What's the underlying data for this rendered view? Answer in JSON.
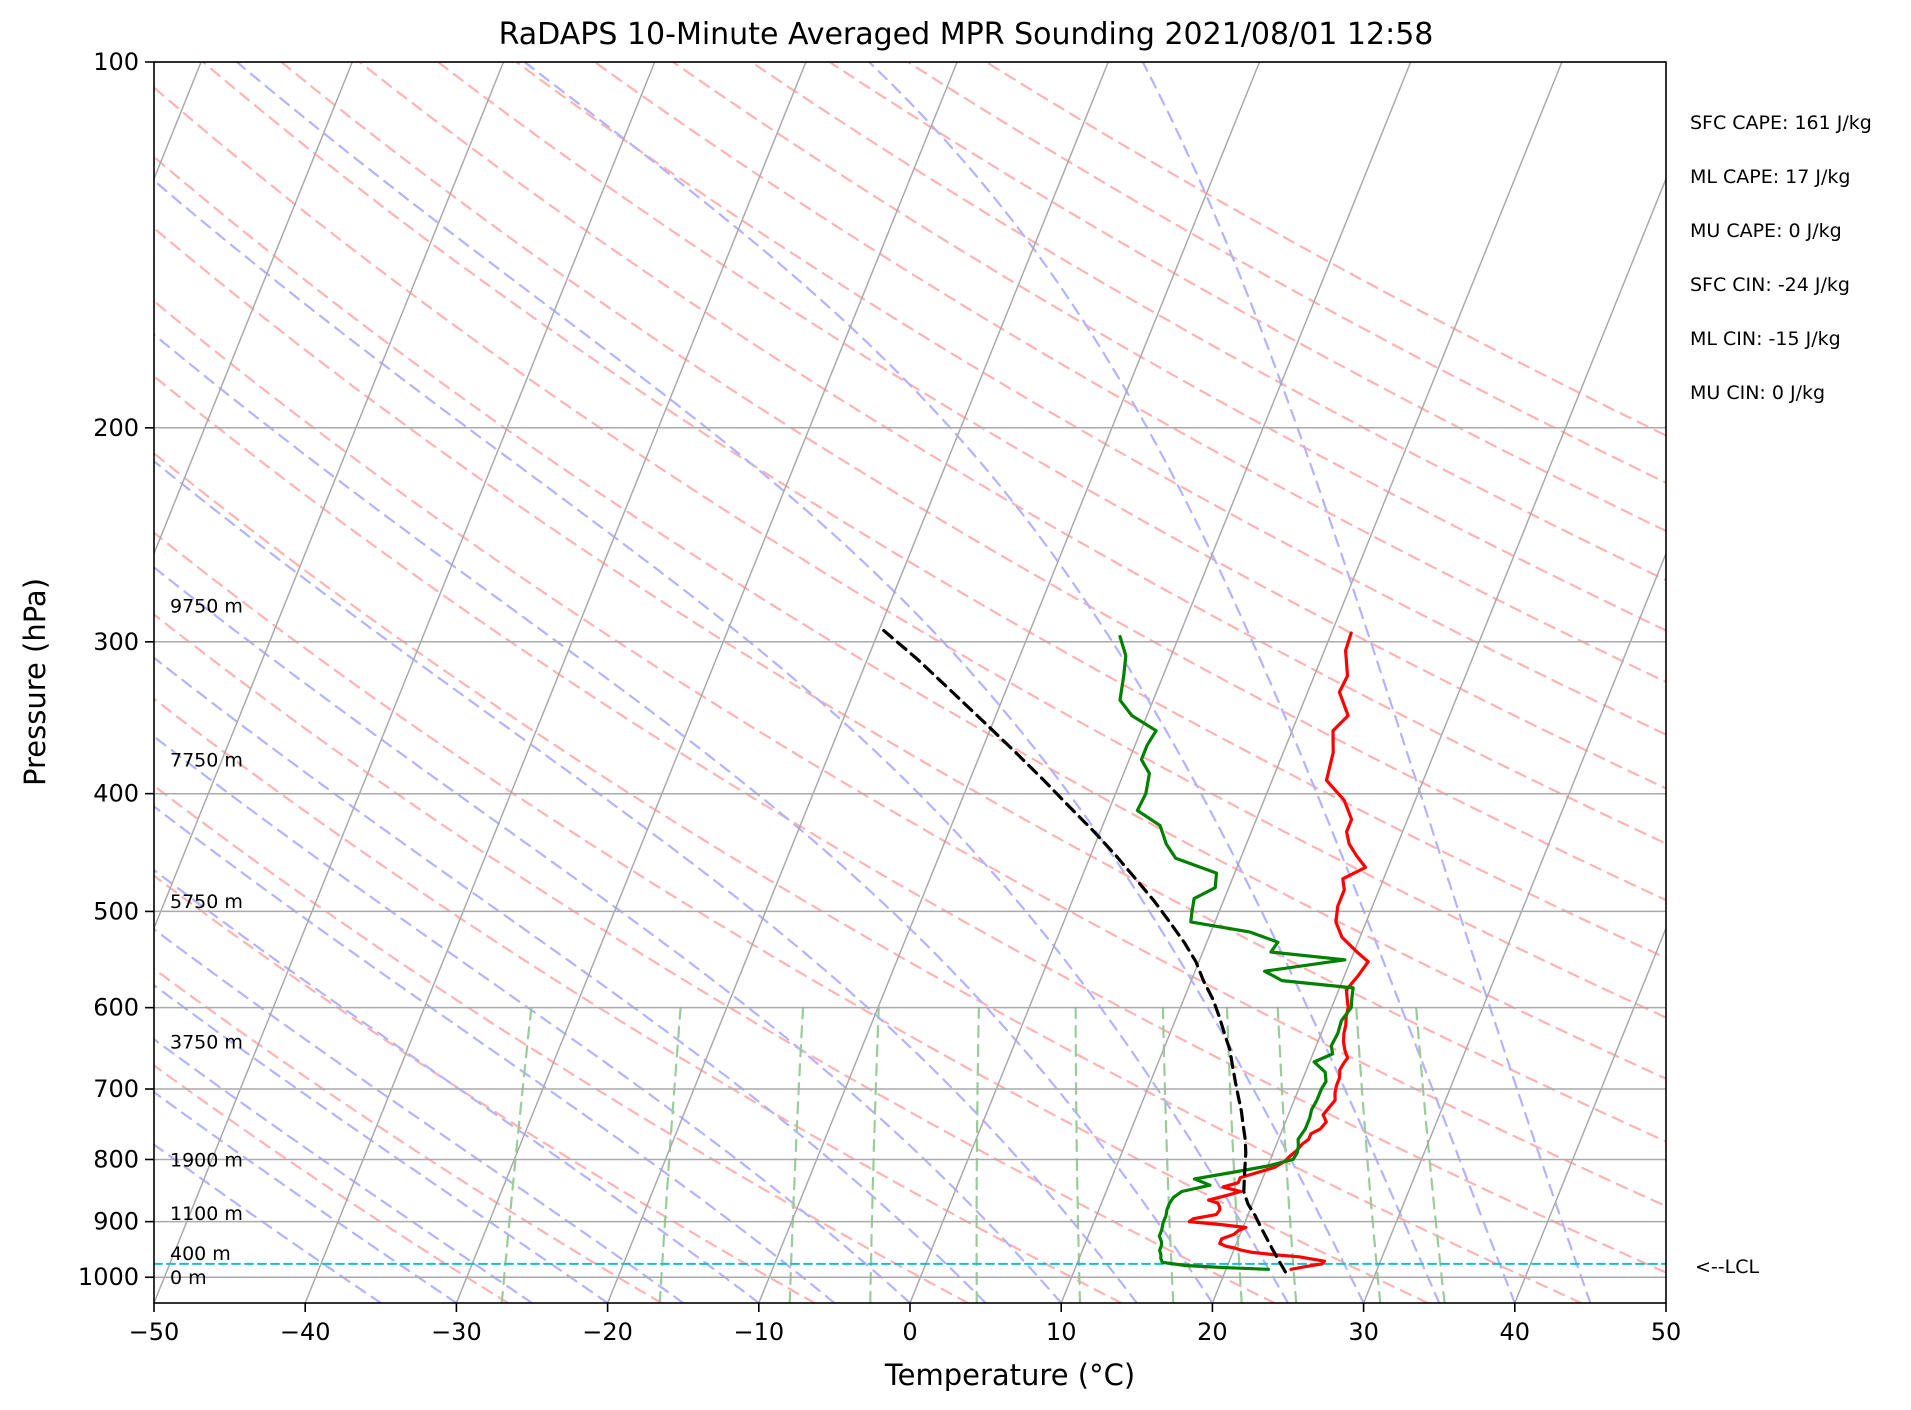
{
  "chart_data": {
    "type": "line",
    "title": "RaDAPS 10-Minute Averaged MPR Sounding 2021/08/01 12:58",
    "xlabel": "Temperature (°C)",
    "ylabel": "Pressure (hPa)",
    "xlim": [
      -50,
      50
    ],
    "ylim": [
      1050,
      100
    ],
    "y_scale": "log",
    "skew": "skew-T log-p",
    "x_ticks": [
      "−50",
      "−40",
      "−30",
      "−20",
      "−10",
      "0",
      "10",
      "20",
      "30",
      "40",
      "50"
    ],
    "x_tick_values": [
      -50,
      -40,
      -30,
      -20,
      -10,
      0,
      10,
      20,
      30,
      40,
      50
    ],
    "y_ticks": [
      "100",
      "200",
      "300",
      "400",
      "500",
      "600",
      "700",
      "800",
      "900",
      "1000"
    ],
    "y_tick_values": [
      100,
      200,
      300,
      400,
      500,
      600,
      700,
      800,
      900,
      1000
    ],
    "grid": true,
    "colors": {
      "temperature": "#ff0000",
      "dewpoint": "#008000",
      "parcel": "#000000",
      "lcl": "#17becf",
      "dry_adiabats": "#ffb3b3",
      "moist_adiabats": "#b3b3ff",
      "mixing_ratio": "#99cc99",
      "isotherms": "#aaaaaa"
    },
    "series": [
      {
        "key": "temperature",
        "pressure": [
          985,
          980,
          975,
          970,
          962,
          958,
          954,
          950,
          946,
          943,
          938,
          930,
          922,
          915,
          910,
          905,
          900,
          895,
          888,
          880,
          875,
          869,
          864,
          857,
          850,
          843,
          836,
          828,
          820,
          812,
          803,
          795,
          787,
          777,
          770,
          762,
          755,
          745,
          735,
          725,
          715,
          705,
          695,
          685,
          675,
          666,
          660,
          650,
          640,
          630,
          620,
          610,
          600,
          590,
          580,
          565,
          550,
          540,
          525,
          510,
          495,
          480,
          470,
          460,
          450,
          440,
          430,
          420,
          405,
          390,
          370,
          355,
          345,
          330,
          320,
          305,
          295
        ],
        "temperature": [
          24.3,
          25.2,
          26.2,
          26.3,
          24.5,
          22.7,
          21.3,
          20.5,
          20.0,
          19.4,
          18.9,
          18.9,
          19.6,
          19.8,
          20.2,
          18.5,
          16.3,
          16.5,
          17.9,
          18.0,
          17.9,
          17.7,
          17.0,
          18.0,
          18.9,
          17.6,
          18.5,
          18.5,
          19.5,
          20.5,
          21.0,
          21.2,
          21.5,
          21.7,
          22.0,
          22.0,
          22.5,
          22.7,
          22.3,
          22.5,
          22.7,
          22.5,
          22.4,
          22.4,
          22.2,
          22.3,
          22.4,
          22.0,
          21.7,
          21.5,
          21.4,
          21.2,
          21.1,
          20.8,
          20.5,
          20.9,
          21.2,
          20.2,
          18.8,
          18.0,
          17.7,
          17.7,
          17.3,
          18.5,
          17.6,
          16.8,
          16.3,
          16.3,
          15.3,
          13.6,
          13.3,
          12.7,
          13.3,
          12.1,
          12.2,
          11.4,
          11.3
        ]
      },
      {
        "key": "dewpoint",
        "pressure": [
          985,
          982,
          978,
          972,
          965,
          958,
          950,
          942,
          935,
          925,
          915,
          902,
          890,
          880,
          870,
          860,
          850,
          840,
          830,
          820,
          810,
          800,
          790,
          780,
          770,
          755,
          740,
          728,
          715,
          700,
          690,
          678,
          665,
          655,
          645,
          630,
          615,
          600,
          590,
          578,
          570,
          560,
          548,
          540,
          530,
          520,
          510,
          500,
          488,
          478,
          465,
          452,
          440,
          425,
          413,
          400,
          385,
          375,
          365,
          355,
          345,
          335,
          320,
          308,
          297
        ],
        "temperature": [
          22.8,
          20.0,
          17.2,
          15.6,
          15.4,
          15.3,
          15.1,
          15.1,
          15.0,
          14.7,
          14.7,
          14.6,
          14.6,
          14.5,
          14.5,
          14.6,
          15.0,
          16.7,
          15.5,
          17.8,
          20.0,
          21.5,
          21.6,
          21.5,
          21.3,
          21.5,
          21.5,
          21.4,
          21.5,
          21.5,
          21.6,
          21.3,
          20.3,
          21.3,
          21.0,
          21.1,
          21.0,
          21.3,
          21.1,
          20.9,
          16.0,
          14.6,
          19.6,
          14.5,
          14.7,
          12.6,
          8.4,
          8.2,
          8.0,
          9.1,
          8.8,
          5.7,
          4.7,
          3.8,
          1.9,
          2.0,
          1.7,
          0.8,
          0.8,
          1.0,
          -1.0,
          -2.2,
          -2.6,
          -3.0,
          -3.9
        ]
      },
      {
        "key": "parcel",
        "pressure": [
          990,
          970,
          950,
          930,
          910,
          890,
          870,
          850,
          830,
          810,
          790,
          770,
          750,
          730,
          710,
          690,
          670,
          650,
          630,
          610,
          590,
          570,
          550,
          530,
          510,
          490,
          470,
          450,
          430,
          410,
          390,
          370,
          350,
          330,
          310,
          293
        ],
        "temperature": [
          24.0,
          23.3,
          22.6,
          21.9,
          21.2,
          20.5,
          19.7,
          19.1,
          18.8,
          18.5,
          18.2,
          17.8,
          17.3,
          16.8,
          16.2,
          15.6,
          15.0,
          14.4,
          13.6,
          12.8,
          11.9,
          10.8,
          9.8,
          8.5,
          7.0,
          5.4,
          3.6,
          1.7,
          -0.4,
          -2.7,
          -5.1,
          -7.7,
          -10.5,
          -13.5,
          -16.7,
          -19.8
        ]
      }
    ],
    "lcl": {
      "pressure": 975,
      "label": "<--LCL"
    },
    "height_labels": [
      {
        "text": "0 m",
        "pressure": 1000
      },
      {
        "text": "400 m",
        "pressure": 955
      },
      {
        "text": "1100 m",
        "pressure": 885
      },
      {
        "text": "1900 m",
        "pressure": 800
      },
      {
        "text": "3750 m",
        "pressure": 640
      },
      {
        "text": "5750 m",
        "pressure": 490
      },
      {
        "text": "7750 m",
        "pressure": 375
      },
      {
        "text": "9750 m",
        "pressure": 280
      }
    ]
  },
  "stats": [
    {
      "name": "sfc_cape",
      "text": "SFC CAPE: 161 J/kg"
    },
    {
      "name": "ml_cape",
      "text": "ML CAPE: 17 J/kg"
    },
    {
      "name": "mu_cape",
      "text": "MU CAPE: 0 J/kg"
    },
    {
      "name": "sfc_cin",
      "text": "SFC CIN: -24 J/kg"
    },
    {
      "name": "ml_cin",
      "text": "ML CIN: -15 J/kg"
    },
    {
      "name": "mu_cin",
      "text": "MU CIN: 0 J/kg"
    }
  ]
}
